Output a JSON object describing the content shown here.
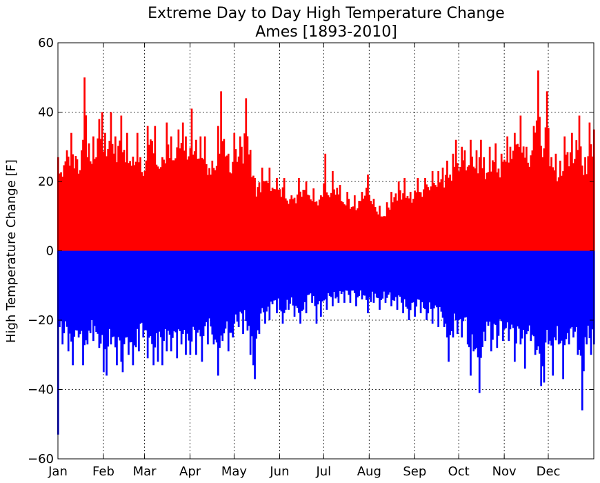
{
  "chart_data": {
    "type": "bar",
    "title": "Extreme Day to Day High Temperature Change",
    "subtitle": "Ames [1893-2010]",
    "xlabel": "",
    "ylabel": "High Temperature Change [F]",
    "ylim": [
      -60,
      60
    ],
    "yticks": [
      "60",
      "40",
      "20",
      "0",
      "−20",
      "−40",
      "−60"
    ],
    "ytick_values": [
      60,
      40,
      20,
      0,
      -20,
      -40,
      -60
    ],
    "xlim": [
      1,
      366
    ],
    "categories": [
      "Jan",
      "Feb",
      "Mar",
      "Apr",
      "May",
      "Jun",
      "Jul",
      "Aug",
      "Sep",
      "Oct",
      "Nov",
      "Dec"
    ],
    "month_start_days": [
      1,
      32,
      60,
      91,
      121,
      152,
      182,
      213,
      244,
      274,
      305,
      335
    ],
    "grid": true,
    "colors": {
      "positive": "#ff0000",
      "negative": "#0000ff"
    },
    "series": [
      {
        "values": [
          [
            1,
            27
          ],
          [
            7,
            29
          ],
          [
            10,
            34
          ],
          [
            17,
            29
          ],
          [
            18,
            32
          ],
          [
            19,
            50
          ],
          [
            22,
            31
          ],
          [
            25,
            33
          ],
          [
            29,
            38
          ],
          [
            31,
            40
          ],
          [
            33,
            34
          ],
          [
            37,
            40
          ],
          [
            40,
            33
          ],
          [
            44,
            39
          ],
          [
            48,
            34
          ],
          [
            55,
            34
          ],
          [
            57,
            27
          ],
          [
            60,
            23
          ],
          [
            62,
            36
          ],
          [
            67,
            36
          ],
          [
            72,
            27
          ],
          [
            75,
            37
          ],
          [
            78,
            33
          ],
          [
            83,
            35
          ],
          [
            86,
            37
          ],
          [
            88,
            33
          ],
          [
            92,
            41
          ],
          [
            95,
            32
          ],
          [
            98,
            33
          ],
          [
            101,
            33
          ],
          [
            106,
            26
          ],
          [
            110,
            36
          ],
          [
            111,
            28
          ],
          [
            112,
            46
          ],
          [
            117,
            28
          ],
          [
            121,
            34
          ],
          [
            125,
            33
          ],
          [
            126,
            30
          ],
          [
            129,
            44
          ],
          [
            135,
            21
          ],
          [
            140,
            24
          ],
          [
            145,
            24
          ],
          [
            150,
            21
          ],
          [
            155,
            21
          ],
          [
            160,
            16
          ],
          [
            165,
            21
          ],
          [
            170,
            20
          ],
          [
            175,
            18
          ],
          [
            180,
            16
          ],
          [
            183,
            28
          ],
          [
            185,
            16
          ],
          [
            188,
            23
          ],
          [
            193,
            19
          ],
          [
            198,
            17
          ],
          [
            203,
            16
          ],
          [
            208,
            17
          ],
          [
            212,
            22
          ],
          [
            216,
            15
          ],
          [
            220,
            13
          ],
          [
            225,
            14
          ],
          [
            228,
            17
          ],
          [
            233,
            20
          ],
          [
            237,
            21
          ],
          [
            241,
            17
          ],
          [
            246,
            21
          ],
          [
            251,
            21
          ],
          [
            256,
            23
          ],
          [
            260,
            23
          ],
          [
            263,
            24
          ],
          [
            266,
            26
          ],
          [
            270,
            28
          ],
          [
            272,
            32
          ],
          [
            276,
            30
          ],
          [
            278,
            29
          ],
          [
            282,
            32
          ],
          [
            286,
            29
          ],
          [
            289,
            32
          ],
          [
            291,
            27
          ],
          [
            295,
            30
          ],
          [
            299,
            31
          ],
          [
            303,
            28
          ],
          [
            307,
            33
          ],
          [
            312,
            34
          ],
          [
            316,
            39
          ],
          [
            320,
            30
          ],
          [
            325,
            36
          ],
          [
            328,
            52
          ],
          [
            331,
            27
          ],
          [
            334,
            46
          ],
          [
            337,
            27
          ],
          [
            340,
            28
          ],
          [
            343,
            26
          ],
          [
            346,
            33
          ],
          [
            351,
            34
          ],
          [
            356,
            39
          ],
          [
            360,
            27
          ],
          [
            363,
            37
          ],
          [
            366,
            35
          ]
        ]
      },
      {
        "values": [
          [
            1,
            -53
          ],
          [
            2,
            -22
          ],
          [
            4,
            -27
          ],
          [
            8,
            -29
          ],
          [
            11,
            -33
          ],
          [
            15,
            -25
          ],
          [
            18,
            -33
          ],
          [
            21,
            -27
          ],
          [
            25,
            -26
          ],
          [
            29,
            -28
          ],
          [
            32,
            -35
          ],
          [
            34,
            -36
          ],
          [
            37,
            -27
          ],
          [
            41,
            -33
          ],
          [
            44,
            -32
          ],
          [
            45,
            -35
          ],
          [
            49,
            -30
          ],
          [
            52,
            -33
          ],
          [
            56,
            -29
          ],
          [
            59,
            -25
          ],
          [
            62,
            -31
          ],
          [
            66,
            -33
          ],
          [
            69,
            -32
          ],
          [
            72,
            -33
          ],
          [
            75,
            -29
          ],
          [
            78,
            -29
          ],
          [
            82,
            -31
          ],
          [
            85,
            -27
          ],
          [
            88,
            -30
          ],
          [
            91,
            -30
          ],
          [
            95,
            -30
          ],
          [
            99,
            -32
          ],
          [
            103,
            -27
          ],
          [
            107,
            -27
          ],
          [
            110,
            -36
          ],
          [
            113,
            -26
          ],
          [
            117,
            -29
          ],
          [
            120,
            -25
          ],
          [
            124,
            -22
          ],
          [
            127,
            -24
          ],
          [
            130,
            -23
          ],
          [
            132,
            -30
          ],
          [
            134,
            -33
          ],
          [
            135,
            -37
          ],
          [
            138,
            -24
          ],
          [
            142,
            -21
          ],
          [
            145,
            -20
          ],
          [
            150,
            -18
          ],
          [
            154,
            -21
          ],
          [
            158,
            -17
          ],
          [
            162,
            -19
          ],
          [
            166,
            -21
          ],
          [
            170,
            -18
          ],
          [
            174,
            -15
          ],
          [
            177,
            -21
          ],
          [
            180,
            -19
          ],
          [
            184,
            -17
          ],
          [
            188,
            -16
          ],
          [
            192,
            -15
          ],
          [
            196,
            -15
          ],
          [
            200,
            -15
          ],
          [
            204,
            -16
          ],
          [
            208,
            -14
          ],
          [
            212,
            -18
          ],
          [
            216,
            -15
          ],
          [
            220,
            -17
          ],
          [
            224,
            -15
          ],
          [
            228,
            -16
          ],
          [
            232,
            -17
          ],
          [
            236,
            -18
          ],
          [
            240,
            -20
          ],
          [
            244,
            -19
          ],
          [
            248,
            -18
          ],
          [
            252,
            -20
          ],
          [
            256,
            -21
          ],
          [
            260,
            -22
          ],
          [
            264,
            -22
          ],
          [
            267,
            -32
          ],
          [
            270,
            -25
          ],
          [
            273,
            -24
          ],
          [
            276,
            -25
          ],
          [
            280,
            -27
          ],
          [
            282,
            -36
          ],
          [
            284,
            -29
          ],
          [
            288,
            -41
          ],
          [
            292,
            -26
          ],
          [
            296,
            -29
          ],
          [
            300,
            -28
          ],
          [
            304,
            -26
          ],
          [
            308,
            -26
          ],
          [
            312,
            -32
          ],
          [
            316,
            -27
          ],
          [
            319,
            -34
          ],
          [
            323,
            -26
          ],
          [
            326,
            -30
          ],
          [
            330,
            -39
          ],
          [
            332,
            -38
          ],
          [
            335,
            -27
          ],
          [
            338,
            -36
          ],
          [
            342,
            -27
          ],
          [
            345,
            -37
          ],
          [
            349,
            -27
          ],
          [
            352,
            -25
          ],
          [
            355,
            -30
          ],
          [
            358,
            -46
          ],
          [
            361,
            -27
          ],
          [
            364,
            -30
          ],
          [
            366,
            -27
          ]
        ]
      }
    ]
  }
}
